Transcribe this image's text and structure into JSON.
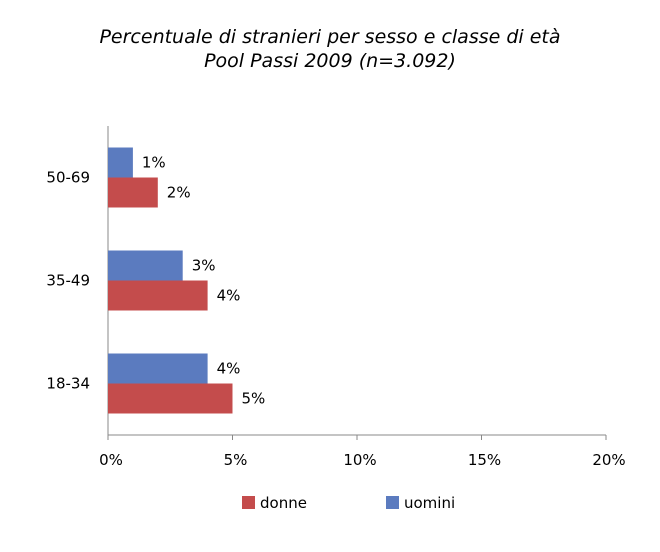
{
  "chart_data": {
    "type": "bar",
    "orientation": "horizontal",
    "title": "Percentuale di stranieri per sesso e classe di età",
    "subtitle": "Pool Passi 2009 (n=3.092)",
    "categories": [
      "50-69",
      "35-49",
      "18-34"
    ],
    "series": [
      {
        "name": "uomini",
        "color": "#5b7bbf",
        "values": [
          1,
          3,
          4
        ],
        "labels": [
          "1%",
          "3%",
          "4%"
        ]
      },
      {
        "name": "donne",
        "color": "#c44c4c",
        "values": [
          2,
          4,
          5
        ],
        "labels": [
          "2%",
          "4%",
          "5%"
        ]
      }
    ],
    "xlim": [
      0,
      20
    ],
    "xticks": [
      0,
      5,
      10,
      15,
      20
    ],
    "xtick_labels": [
      "0%",
      "5%",
      "10%",
      "15%",
      "20%"
    ],
    "grid": false,
    "legend": {
      "placement": "bottom",
      "order": [
        "donne",
        "uomini"
      ]
    }
  }
}
